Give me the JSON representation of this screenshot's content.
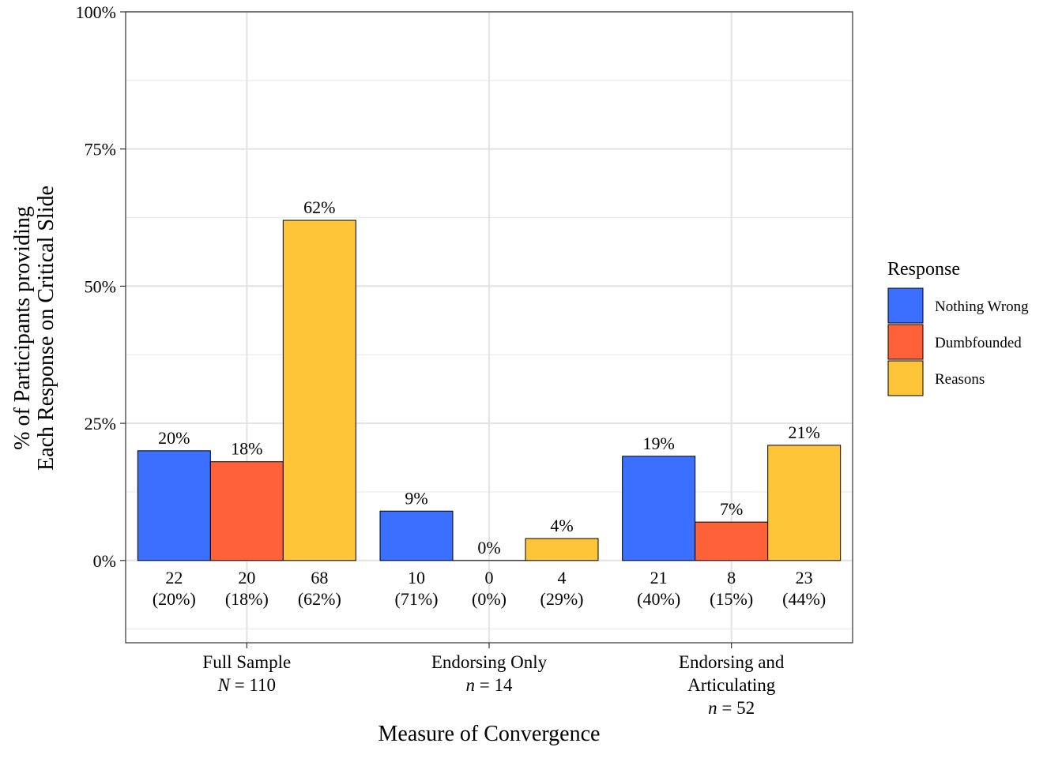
{
  "chart_data": {
    "type": "bar",
    "xlabel": "Measure of Convergence",
    "ylabel_lines": [
      "% of Participants providing",
      "Each Response on Critical Slide"
    ],
    "ylim": [
      -15,
      100
    ],
    "yticks": [
      0,
      25,
      50,
      75,
      100
    ],
    "ytick_labels": [
      "0%",
      "25%",
      "50%",
      "75%",
      "100%"
    ],
    "grid": true,
    "legend_position": "right",
    "categories": [
      {
        "lines": [
          "Full Sample"
        ],
        "n_prefix": "N",
        "n_eq": " = 110"
      },
      {
        "lines": [
          "Endorsing Only"
        ],
        "n_prefix": "n",
        "n_eq": " = 14"
      },
      {
        "lines": [
          "Endorsing and",
          "Articulating"
        ],
        "n_prefix": "n",
        "n_eq": " = 52"
      }
    ],
    "legend_title": "Response",
    "series": [
      {
        "name": "Nothing Wrong",
        "color": "#3a6fff",
        "values": [
          20,
          9,
          19
        ],
        "value_labels": [
          "20%",
          "9%",
          "19%"
        ],
        "counts": [
          "22",
          "10",
          "21"
        ],
        "count_pcts": [
          "(20%)",
          "(71%)",
          "(40%)"
        ]
      },
      {
        "name": "Dumbfounded",
        "color": "#ff6138",
        "values": [
          18,
          0,
          7
        ],
        "value_labels": [
          "18%",
          "0%",
          "7%"
        ],
        "counts": [
          "20",
          "0",
          "8"
        ],
        "count_pcts": [
          "(18%)",
          "(0%)",
          "(15%)"
        ]
      },
      {
        "name": "Reasons",
        "color": "#ffc539",
        "values": [
          62,
          4,
          21
        ],
        "value_labels": [
          "62%",
          "4%",
          "21%"
        ],
        "counts": [
          "68",
          "4",
          "23"
        ],
        "count_pcts": [
          "(62%)",
          "(29%)",
          "(44%)"
        ]
      }
    ]
  }
}
